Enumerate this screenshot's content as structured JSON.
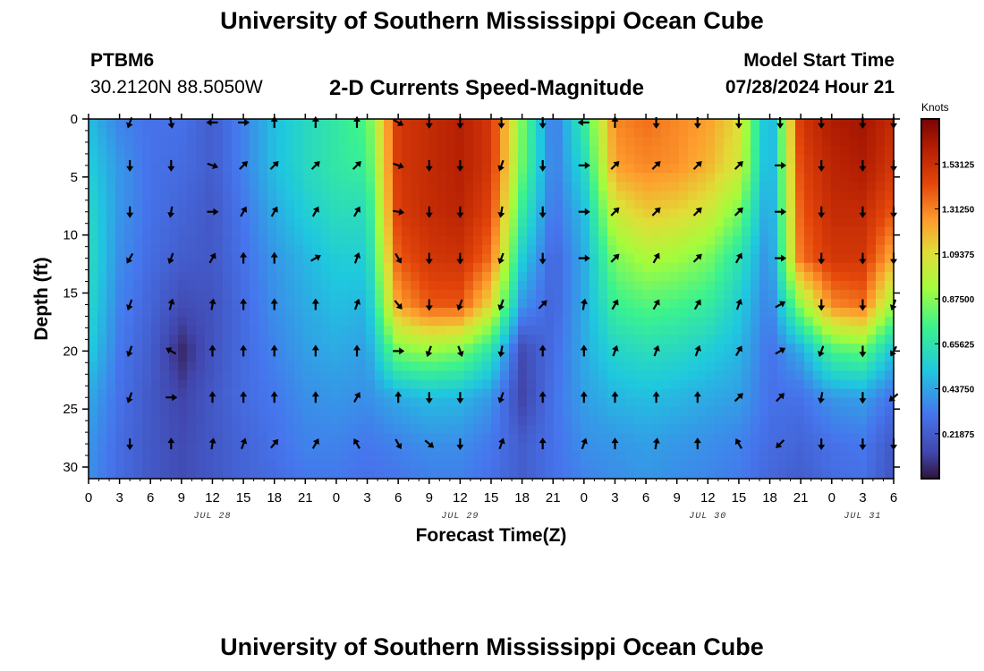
{
  "header": {
    "title": "University of Southern Mississippi Ocean Cube",
    "station": "PTBM6",
    "coords": "30.2120N  88.5050W",
    "subtitle": "2-D Currents Speed-Magnitude",
    "model_start_label": "Model Start Time",
    "model_start_value": "07/28/2024 Hour 21",
    "footer_title": "University of Southern Mississippi Ocean Cube"
  },
  "colorbar": {
    "units": "Knots",
    "tick_labels": [
      "1.53125",
      "1.31250",
      "1.09375",
      "0.87500",
      "0.65625",
      "0.43750",
      "0.21875"
    ],
    "tick_values": [
      1.53125,
      1.3125,
      1.09375,
      0.875,
      0.65625,
      0.4375,
      0.21875
    ],
    "range": [
      0,
      1.75
    ]
  },
  "chart_data": {
    "type": "heatmap",
    "title": "2-D Currents Speed-Magnitude",
    "xlabel": "Forecast Time(Z)",
    "ylabel": "Depth (ft)",
    "xlim": [
      0,
      78
    ],
    "ylim": [
      31,
      0
    ],
    "x_tick_values": [
      0,
      3,
      6,
      9,
      12,
      15,
      18,
      21,
      24,
      27,
      30,
      33,
      36,
      39,
      42,
      45,
      48,
      51,
      54,
      57,
      60,
      63,
      66,
      69,
      72,
      75,
      78
    ],
    "x_tick_labels": [
      "0",
      "3",
      "6",
      "9",
      "12",
      "15",
      "18",
      "21",
      "0",
      "3",
      "6",
      "9",
      "12",
      "15",
      "18",
      "21",
      "0",
      "3",
      "6",
      "9",
      "12",
      "15",
      "18",
      "21",
      "0",
      "3",
      "6"
    ],
    "date_labels": [
      {
        "x": 12,
        "label": "JUL 28"
      },
      {
        "x": 36,
        "label": "JUL 29"
      },
      {
        "x": 60,
        "label": "JUL 30"
      },
      {
        "x": 75,
        "label": "JUL 31"
      }
    ],
    "y_tick_values": [
      0,
      5,
      10,
      15,
      20,
      25,
      30
    ],
    "y_tick_labels": [
      "0",
      "5",
      "10",
      "15",
      "20",
      "25",
      "30"
    ],
    "time_hours": [
      0,
      3,
      6,
      9,
      12,
      15,
      18,
      21,
      24,
      27,
      30,
      33,
      36,
      39,
      42,
      45,
      48,
      51,
      54,
      57,
      60,
      63,
      66,
      69,
      72,
      75,
      78
    ],
    "depth_levels_ft": [
      0,
      4,
      8,
      12,
      16,
      20,
      24,
      28,
      31
    ],
    "speed_profiles_knots": {
      "description": "columns = time_hours, rows = depth_levels_ft",
      "values": [
        [
          0.5,
          0.35,
          0.3,
          0.3,
          0.22,
          0.35,
          0.5,
          0.6,
          0.68,
          0.78,
          1.5,
          1.55,
          1.6,
          1.5,
          0.85,
          0.3,
          0.7,
          1.3,
          1.35,
          1.3,
          1.25,
          1.1,
          0.4,
          1.5,
          1.62,
          1.65,
          1.55
        ],
        [
          0.55,
          0.4,
          0.3,
          0.28,
          0.22,
          0.35,
          0.5,
          0.6,
          0.68,
          0.72,
          1.5,
          1.55,
          1.6,
          1.5,
          0.82,
          0.32,
          0.6,
          1.25,
          1.3,
          1.28,
          1.2,
          1.05,
          0.4,
          1.45,
          1.58,
          1.62,
          1.5
        ],
        [
          0.6,
          0.4,
          0.3,
          0.25,
          0.2,
          0.32,
          0.45,
          0.55,
          0.62,
          0.62,
          1.48,
          1.55,
          1.58,
          1.45,
          0.7,
          0.3,
          0.5,
          1.05,
          1.15,
          1.12,
          1.05,
          0.85,
          0.38,
          1.4,
          1.55,
          1.55,
          1.4
        ],
        [
          0.62,
          0.38,
          0.28,
          0.22,
          0.2,
          0.3,
          0.4,
          0.48,
          0.55,
          0.55,
          1.4,
          1.5,
          1.52,
          1.35,
          0.55,
          0.25,
          0.45,
          0.85,
          0.95,
          0.92,
          0.85,
          0.65,
          0.35,
          1.35,
          1.5,
          1.5,
          1.2
        ],
        [
          0.6,
          0.35,
          0.25,
          0.15,
          0.18,
          0.28,
          0.38,
          0.45,
          0.5,
          0.48,
          1.25,
          1.4,
          1.4,
          1.1,
          0.4,
          0.25,
          0.45,
          0.72,
          0.78,
          0.75,
          0.7,
          0.55,
          0.33,
          0.9,
          1.3,
          1.35,
          0.9
        ],
        [
          0.55,
          0.32,
          0.22,
          0.05,
          0.18,
          0.28,
          0.35,
          0.42,
          0.45,
          0.42,
          0.85,
          0.9,
          0.85,
          0.65,
          0.15,
          0.28,
          0.45,
          0.58,
          0.62,
          0.6,
          0.55,
          0.48,
          0.3,
          0.45,
          0.75,
          0.8,
          0.5
        ],
        [
          0.45,
          0.3,
          0.2,
          0.12,
          0.2,
          0.28,
          0.32,
          0.38,
          0.4,
          0.38,
          0.45,
          0.5,
          0.48,
          0.4,
          0.12,
          0.3,
          0.42,
          0.48,
          0.5,
          0.48,
          0.45,
          0.42,
          0.3,
          0.3,
          0.4,
          0.42,
          0.3
        ],
        [
          0.4,
          0.28,
          0.2,
          0.15,
          0.2,
          0.25,
          0.3,
          0.35,
          0.35,
          0.32,
          0.35,
          0.38,
          0.38,
          0.32,
          0.22,
          0.3,
          0.38,
          0.4,
          0.42,
          0.4,
          0.38,
          0.35,
          0.28,
          0.25,
          0.3,
          0.32,
          0.2
        ],
        [
          0.38,
          0.28,
          0.2,
          0.15,
          0.2,
          0.25,
          0.28,
          0.32,
          0.32,
          0.3,
          0.32,
          0.34,
          0.34,
          0.3,
          0.22,
          0.3,
          0.35,
          0.38,
          0.4,
          0.38,
          0.36,
          0.33,
          0.26,
          0.22,
          0.28,
          0.3,
          0.18
        ]
      ]
    },
    "vector_time_hours": [
      4,
      8,
      12,
      15,
      18,
      22,
      26,
      30,
      33,
      36,
      40,
      44,
      48,
      51,
      55,
      59,
      63,
      67,
      71,
      75,
      78
    ],
    "vector_depth_ft": [
      0.3,
      4,
      8,
      12,
      16,
      20,
      24,
      28
    ],
    "vector_direction_deg": {
      "description": "compass heading the arrow points to (0 = up/north), rows = vector_depth_ft, columns = vector_time_hours",
      "values": [
        [
          200,
          170,
          270,
          90,
          0,
          0,
          0,
          120,
          180,
          180,
          180,
          180,
          270,
          0,
          180,
          180,
          180,
          180,
          180,
          180,
          180
        ],
        [
          180,
          180,
          110,
          45,
          45,
          45,
          45,
          110,
          180,
          180,
          200,
          180,
          90,
          45,
          45,
          45,
          45,
          90,
          180,
          180,
          180
        ],
        [
          180,
          190,
          90,
          30,
          30,
          30,
          30,
          100,
          180,
          180,
          190,
          180,
          90,
          45,
          45,
          45,
          45,
          90,
          180,
          180,
          180
        ],
        [
          210,
          200,
          30,
          0,
          0,
          60,
          20,
          150,
          180,
          180,
          200,
          180,
          90,
          45,
          30,
          45,
          30,
          90,
          180,
          180,
          180
        ],
        [
          200,
          15,
          10,
          0,
          0,
          0,
          20,
          140,
          180,
          200,
          200,
          45,
          10,
          30,
          30,
          30,
          20,
          60,
          180,
          180,
          200
        ],
        [
          200,
          300,
          0,
          0,
          0,
          0,
          0,
          90,
          200,
          160,
          190,
          0,
          0,
          20,
          20,
          20,
          30,
          60,
          200,
          180,
          210
        ],
        [
          200,
          90,
          0,
          0,
          0,
          0,
          30,
          0,
          180,
          180,
          200,
          0,
          0,
          0,
          0,
          0,
          45,
          45,
          190,
          180,
          230
        ],
        [
          180,
          0,
          10,
          20,
          40,
          30,
          330,
          150,
          130,
          180,
          20,
          0,
          20,
          0,
          10,
          0,
          330,
          225,
          180,
          180,
          180
        ]
      ]
    }
  }
}
